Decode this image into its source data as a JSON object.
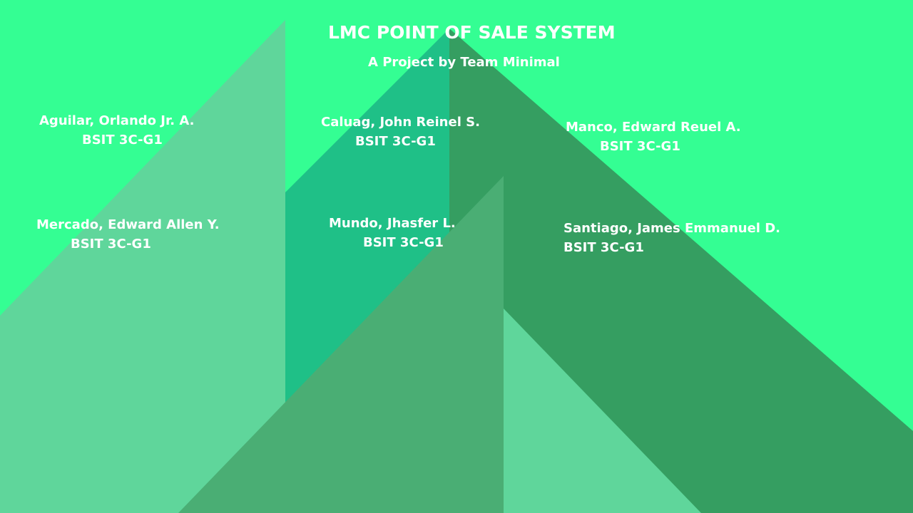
{
  "page": {
    "title": "LMC POINT OF SALE SYSTEM",
    "subtitle": "A Project by Team Minimal"
  },
  "members": [
    {
      "name": "Aguilar, Orlando Jr. A.",
      "section": "BSIT 3C-G1"
    },
    {
      "name": "Caluag, John Reinel S.",
      "section": "BSIT 3C-G1"
    },
    {
      "name": "Manco, Edward Reuel A.",
      "section": "BSIT 3C-G1"
    },
    {
      "name": "Mercado, Edward Allen Y.",
      "section": "BSIT 3C-G1"
    },
    {
      "name": "Mundo, Jhasfer L.",
      "section": "BSIT 3C-G1"
    },
    {
      "name": "Santiago, James Emmanuel D.",
      "section": "BSIT 3C-G1"
    }
  ],
  "colors": {
    "background": "#34fe93",
    "shape_light": "#5fd69b",
    "shape_teal": "#1fc087",
    "shape_dark": "#359e61",
    "shape_mid": "#4aae74",
    "text": "#ffffff"
  }
}
